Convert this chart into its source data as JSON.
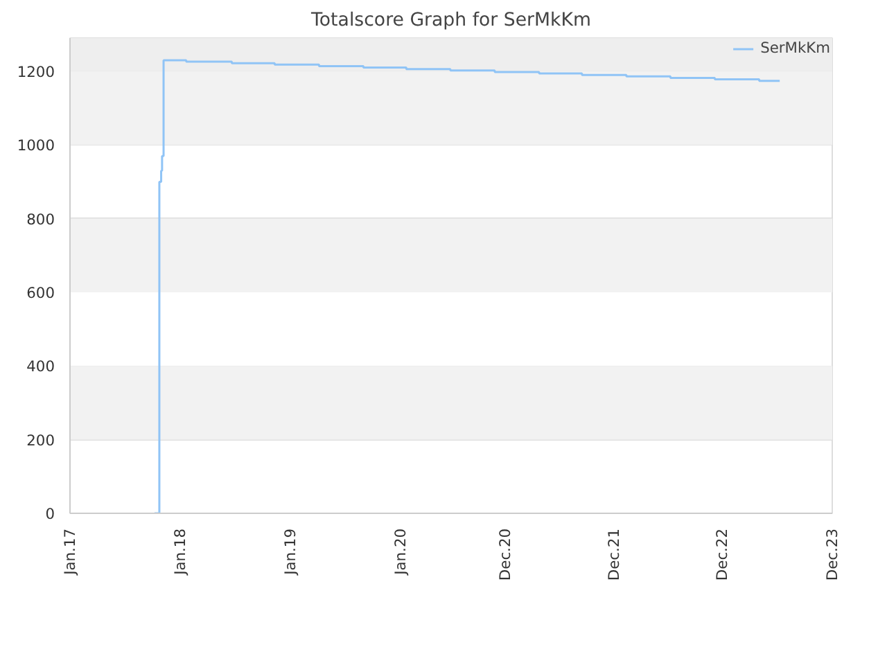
{
  "chart_data": {
    "type": "step",
    "title": "Totalscore Graph for SerMkKm",
    "x": [
      "2017-10-08",
      "2017-10-24",
      "2017-10-30",
      "2017-11-02",
      "2017-11-07",
      "2018-01-21",
      "2018-06-21",
      "2018-11-10",
      "2019-04-06",
      "2019-08-31",
      "2020-01-20",
      "2020-06-14",
      "2020-11-08",
      "2021-04-04",
      "2021-08-24",
      "2022-01-18",
      "2022-06-13",
      "2022-11-07",
      "2023-04-03",
      "2023-06-10"
    ],
    "series": [
      {
        "name": "SerMkKm",
        "color": "#90c4f6",
        "values": [
          0,
          900,
          930,
          970,
          1230,
          1226,
          1222,
          1218,
          1214,
          1210,
          1206,
          1202,
          1198,
          1194,
          1190,
          1186,
          1182,
          1178,
          1174,
          1174
        ]
      }
    ],
    "xlim": [
      "2017-01-01",
      "2023-12-01"
    ],
    "xticks": [
      {
        "value": "2017-01-01",
        "label": "Jan.17"
      },
      {
        "value": "2018-01-01",
        "label": "Jan.18"
      },
      {
        "value": "2019-01-01",
        "label": "Jan.19"
      },
      {
        "value": "2020-01-01",
        "label": "Jan.20"
      },
      {
        "value": "2020-12-12",
        "label": "Dec.20"
      },
      {
        "value": "2021-12-07",
        "label": "Dec.21"
      },
      {
        "value": "2022-12-02",
        "label": "Dec.22"
      },
      {
        "value": "2023-12-01",
        "label": "Dec.23"
      }
    ],
    "ylim": [
      0,
      1290
    ],
    "yticks": [
      0,
      200,
      400,
      600,
      800,
      1000,
      1200
    ],
    "bands": [
      {
        "axis": "y",
        "from": 200,
        "to": 400,
        "color": "#f2f2f2"
      },
      {
        "axis": "y",
        "from": 600,
        "to": 800,
        "color": "#f2f2f2"
      },
      {
        "axis": "y",
        "from": 1000,
        "to": 1200,
        "color": "#f2f2f2"
      },
      {
        "axis": "y",
        "from": 1200,
        "to": 1290,
        "color": "#eeeeee"
      }
    ],
    "grid": "y",
    "legend": "top right",
    "line_style": "solid"
  }
}
